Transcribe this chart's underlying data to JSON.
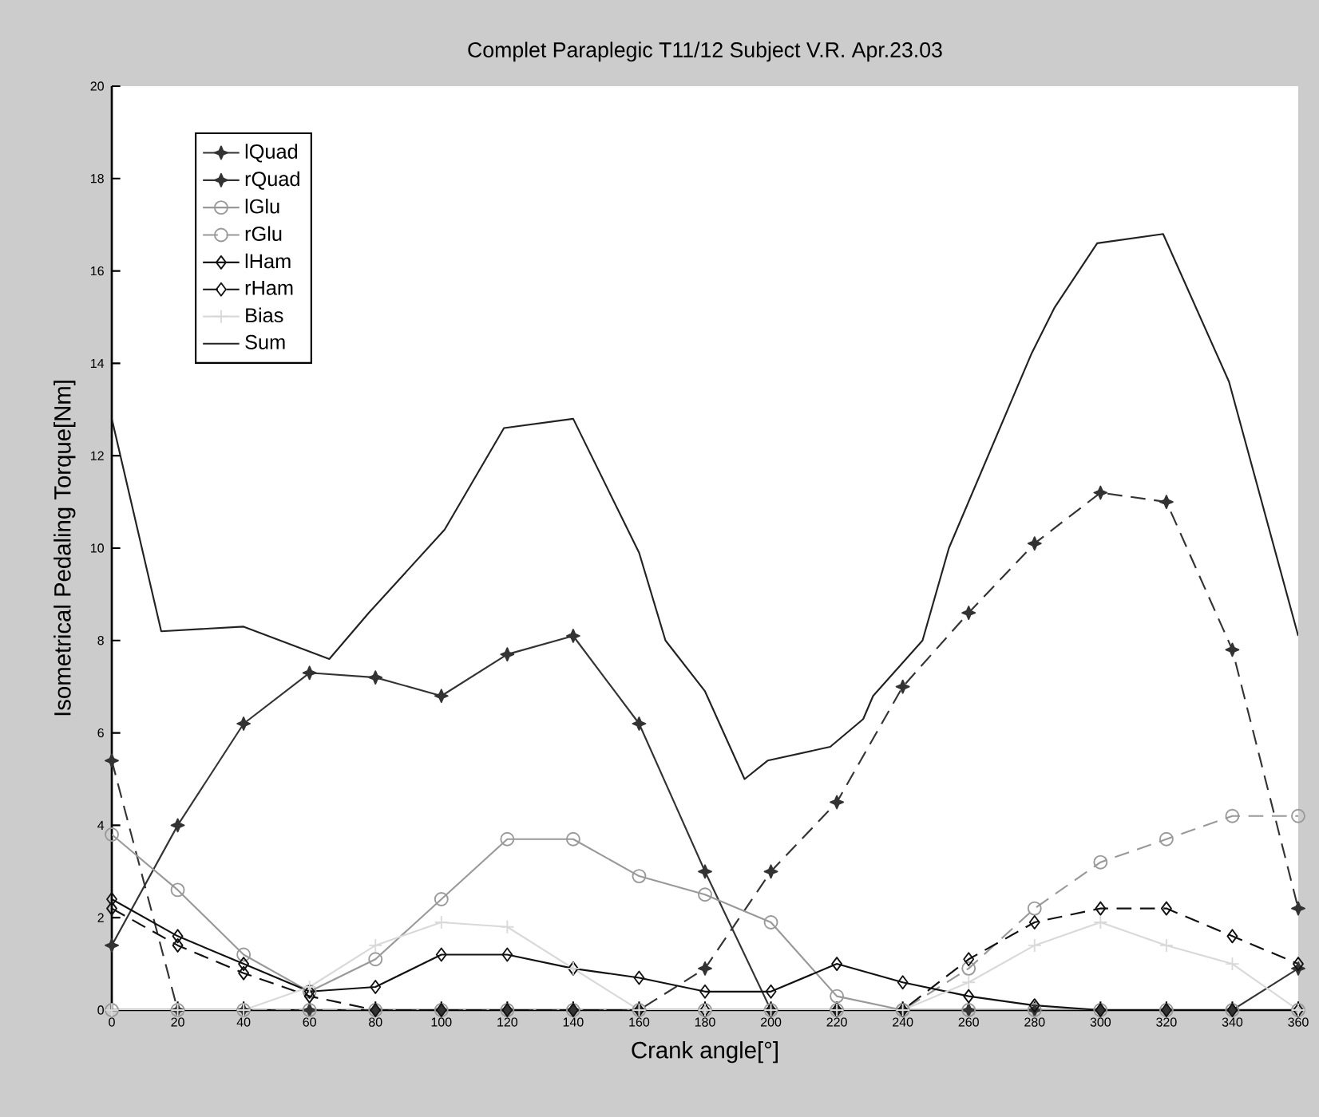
{
  "chart_data": {
    "type": "line",
    "title": "Complet Paraplegic T11/12 Subject V.R. Apr.23.03",
    "xlabel": "Crank angle[°]",
    "ylabel": "Isometrical Pedaling Torque[Nm]",
    "x": [
      0,
      20,
      40,
      60,
      80,
      100,
      120,
      140,
      160,
      180,
      200,
      220,
      240,
      260,
      280,
      300,
      320,
      340,
      360
    ],
    "series": [
      {
        "name": "lQuad",
        "color": "#333333",
        "marker": "star",
        "line_style": "solid",
        "values": [
          1.4,
          4.0,
          6.2,
          7.3,
          7.2,
          6.8,
          7.7,
          8.1,
          6.2,
          3.0,
          0,
          0,
          0,
          0,
          0,
          0,
          0,
          0,
          0.9
        ]
      },
      {
        "name": "rQuad",
        "color": "#333333",
        "marker": "star",
        "line_style": "dashed",
        "values": [
          5.4,
          0,
          0,
          0,
          0,
          0,
          0,
          0,
          0,
          0.9,
          3.0,
          4.5,
          7.0,
          8.6,
          10.1,
          11.2,
          11.0,
          7.8,
          2.2
        ]
      },
      {
        "name": "lGlu",
        "color": "#999999",
        "marker": "circle",
        "line_style": "solid",
        "values": [
          3.8,
          2.6,
          1.2,
          0.4,
          1.1,
          2.4,
          3.7,
          3.7,
          2.9,
          2.5,
          1.9,
          0.3,
          0,
          0,
          0,
          0,
          0,
          0,
          0
        ]
      },
      {
        "name": "rGlu",
        "color": "#999999",
        "marker": "circle",
        "line_style": "dashed",
        "values": [
          0,
          0,
          0,
          0,
          0,
          0,
          0,
          0,
          0,
          0,
          0,
          0,
          0,
          0.9,
          2.2,
          3.2,
          3.7,
          4.2,
          4.2
        ]
      },
      {
        "name": "lHam",
        "color": "#111111",
        "marker": "diamond",
        "line_style": "solid",
        "values": [
          2.4,
          1.6,
          1.0,
          0.4,
          0.5,
          1.2,
          1.2,
          0.9,
          0.7,
          0.4,
          0.4,
          1.0,
          0.6,
          0.3,
          0.1,
          0,
          0,
          0,
          0
        ]
      },
      {
        "name": "rHam",
        "color": "#111111",
        "marker": "diamond",
        "line_style": "dashed",
        "values": [
          2.2,
          1.4,
          0.8,
          0.3,
          0,
          0,
          0,
          0,
          0,
          0,
          0,
          0,
          0,
          1.1,
          1.9,
          2.2,
          2.2,
          1.6,
          1.0
        ]
      },
      {
        "name": "Bias",
        "color": "#d9d9d9",
        "marker": "cross",
        "line_style": "solid",
        "values": [
          0,
          0,
          0,
          0.5,
          1.4,
          1.9,
          1.8,
          0.9,
          0,
          0,
          0,
          0,
          0,
          0.6,
          1.4,
          1.9,
          1.4,
          1.0,
          0
        ]
      },
      {
        "name": "Sum",
        "color": "#222222",
        "marker": "none",
        "line_style": "solid",
        "x": [
          0,
          15,
          40,
          66,
          78,
          101,
          119,
          140,
          160,
          168,
          180,
          192,
          199,
          218,
          228,
          231,
          246,
          254,
          279,
          286,
          299,
          319,
          339,
          360
        ],
        "values": [
          12.8,
          8.2,
          8.3,
          7.6,
          8.6,
          10.4,
          12.6,
          12.8,
          9.9,
          8.0,
          6.9,
          5.0,
          5.4,
          5.7,
          6.3,
          6.8,
          8.0,
          10.0,
          14.2,
          15.2,
          16.6,
          16.8,
          13.6,
          8.1
        ]
      }
    ],
    "xlim": [
      0,
      360
    ],
    "xticks": [
      0,
      20,
      40,
      60,
      80,
      100,
      120,
      140,
      160,
      180,
      200,
      220,
      240,
      260,
      280,
      300,
      320,
      340,
      360
    ],
    "ylim": [
      0,
      20
    ],
    "yticks": [
      0,
      2,
      4,
      6,
      8,
      10,
      12,
      14,
      16,
      18,
      20
    ],
    "legend": "top left"
  }
}
